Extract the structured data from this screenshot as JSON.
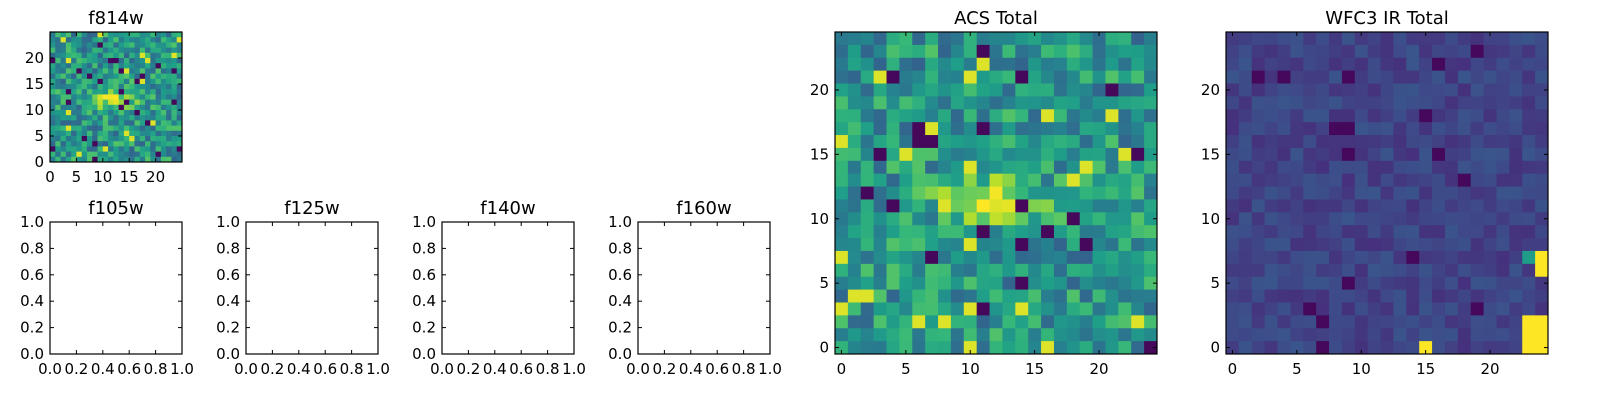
{
  "chart_data": [
    {
      "type": "heatmap",
      "title": "f814w",
      "cmap": "viridis",
      "grid_size": 25,
      "xlim": [
        0,
        25
      ],
      "ylim": [
        0,
        25
      ],
      "x_ticks": [
        "0",
        "5",
        "10",
        "15",
        "20"
      ],
      "y_ticks": [
        "0",
        "5",
        "10",
        "15",
        "20"
      ],
      "feature": "bright elongated source near center (x about 8-15, y about 10-13)",
      "seed": 7
    },
    {
      "type": "empty",
      "title": "f105w",
      "xlim": [
        0,
        1
      ],
      "ylim": [
        0,
        1
      ],
      "x_ticks": [
        "0.0",
        "0.2",
        "0.4",
        "0.6",
        "0.8",
        "1.0"
      ],
      "y_ticks": [
        "0.0",
        "0.2",
        "0.4",
        "0.6",
        "0.8",
        "1.0"
      ]
    },
    {
      "type": "empty",
      "title": "f125w",
      "xlim": [
        0,
        1
      ],
      "ylim": [
        0,
        1
      ],
      "x_ticks": [
        "0.0",
        "0.2",
        "0.4",
        "0.6",
        "0.8",
        "1.0"
      ],
      "y_ticks": [
        "0.0",
        "0.2",
        "0.4",
        "0.6",
        "0.8",
        "1.0"
      ]
    },
    {
      "type": "empty",
      "title": "f140w",
      "xlim": [
        0,
        1
      ],
      "ylim": [
        0,
        1
      ],
      "x_ticks": [
        "0.0",
        "0.2",
        "0.4",
        "0.6",
        "0.8",
        "1.0"
      ],
      "y_ticks": [
        "0.0",
        "0.2",
        "0.4",
        "0.6",
        "0.8",
        "1.0"
      ]
    },
    {
      "type": "empty",
      "title": "f160w",
      "xlim": [
        0,
        1
      ],
      "ylim": [
        0,
        1
      ],
      "x_ticks": [
        "0.0",
        "0.2",
        "0.4",
        "0.6",
        "0.8",
        "1.0"
      ],
      "y_ticks": [
        "0.0",
        "0.2",
        "0.4",
        "0.6",
        "0.8",
        "1.0"
      ]
    },
    {
      "type": "heatmap",
      "title": "ACS Total",
      "cmap": "viridis",
      "grid_size": 25,
      "xlim": [
        -0.5,
        24.5
      ],
      "ylim": [
        -0.5,
        24.5
      ],
      "x_ticks": [
        "0",
        "5",
        "10",
        "15",
        "20"
      ],
      "y_ticks": [
        "0",
        "5",
        "10",
        "15",
        "20"
      ],
      "feature": "bright elongated source near center (x about 8-16, y about 10-13)",
      "seed": 11
    },
    {
      "type": "heatmap",
      "title": "WFC3 IR Total",
      "cmap": "viridis",
      "grid_size": 25,
      "xlim": [
        -0.5,
        24.5
      ],
      "ylim": [
        -0.5,
        24.5
      ],
      "x_ticks": [
        "0",
        "5",
        "10",
        "15",
        "20"
      ],
      "y_ticks": [
        "0",
        "5",
        "10",
        "15",
        "20"
      ],
      "feature": "mostly dark field with bright yellow pixels at right edge (x 23-24, y 6-7 and y 0-2) and x 15, y 0",
      "seed": 23
    }
  ]
}
